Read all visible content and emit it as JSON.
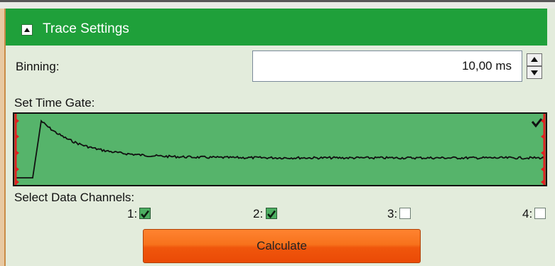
{
  "header": {
    "title": "Trace Settings"
  },
  "binning": {
    "label": "Binning:",
    "value": "10,00 ms"
  },
  "time_gate": {
    "label": "Set Time Gate:",
    "trace_color": "#111111",
    "gate_color": "#56b46b",
    "marker_color": "#e02020"
  },
  "channels": {
    "label": "Select Data Channels:",
    "items": [
      {
        "label": "1:",
        "checked": true
      },
      {
        "label": "2:",
        "checked": true
      },
      {
        "label": "3:",
        "checked": false
      },
      {
        "label": "4:",
        "checked": false
      }
    ]
  },
  "calculate": {
    "label": "Calculate"
  },
  "colors": {
    "header_green": "#1fa03a",
    "panel_bg": "#e3ecdc",
    "button_orange": "#f7721c"
  }
}
